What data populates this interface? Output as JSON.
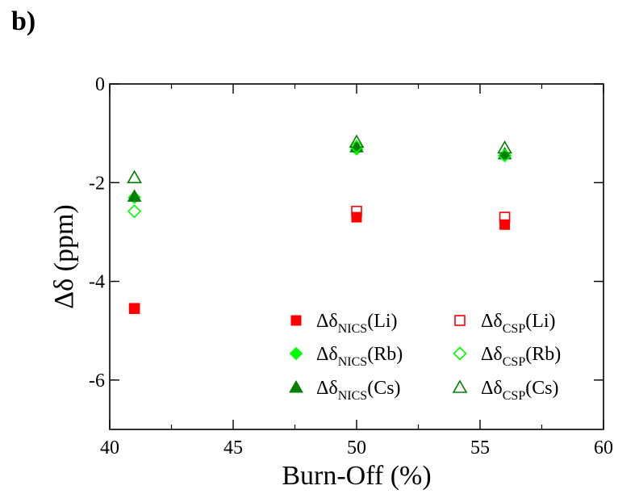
{
  "panel_label": "b)",
  "chart_data": {
    "type": "scatter",
    "title": "",
    "xlabel": "Burn-Off (%)",
    "ylabel": "Δδ (ppm)",
    "xlim": [
      40,
      60
    ],
    "ylim": [
      -7,
      0
    ],
    "x_ticks": [
      40,
      45,
      50,
      55,
      60
    ],
    "y_ticks": [
      0,
      -2,
      -4,
      -6
    ],
    "grid": false,
    "legend_position": "bottom-right",
    "series": [
      {
        "name": "Δδ",
        "sub": "NICS",
        "suffix": "(Li)",
        "marker": "square",
        "filled": true,
        "color": "#ff0000",
        "points": [
          [
            41,
            -4.55
          ],
          [
            50,
            -2.7
          ],
          [
            56,
            -2.85
          ]
        ]
      },
      {
        "name": "Δδ",
        "sub": "NICS",
        "suffix": "(Rb)",
        "marker": "diamond",
        "filled": true,
        "color": "#00ff00",
        "points": [
          [
            41,
            -2.3
          ],
          [
            50,
            -1.32
          ],
          [
            56,
            -1.45
          ]
        ]
      },
      {
        "name": "Δδ",
        "sub": "NICS",
        "suffix": "(Cs)",
        "marker": "triangle",
        "filled": true,
        "color": "#008000",
        "points": [
          [
            41,
            -2.28
          ],
          [
            50,
            -1.28
          ],
          [
            56,
            -1.42
          ]
        ]
      },
      {
        "name": "Δδ",
        "sub": "CSP",
        "suffix": "(Li)",
        "marker": "square",
        "filled": false,
        "color": "#ff0000",
        "points": [
          [
            41,
            -4.55
          ],
          [
            50,
            -2.58
          ],
          [
            56,
            -2.7
          ]
        ]
      },
      {
        "name": "Δδ",
        "sub": "CSP",
        "suffix": "(Rb)",
        "marker": "diamond",
        "filled": false,
        "color": "#00ff00",
        "points": [
          [
            41,
            -2.58
          ],
          [
            50,
            -1.27
          ],
          [
            56,
            -1.45
          ]
        ]
      },
      {
        "name": "Δδ",
        "sub": "CSP",
        "suffix": "(Cs)",
        "marker": "triangle",
        "filled": false,
        "color": "#008000",
        "points": [
          [
            41,
            -1.9
          ],
          [
            50,
            -1.18
          ],
          [
            56,
            -1.3
          ]
        ]
      }
    ]
  }
}
